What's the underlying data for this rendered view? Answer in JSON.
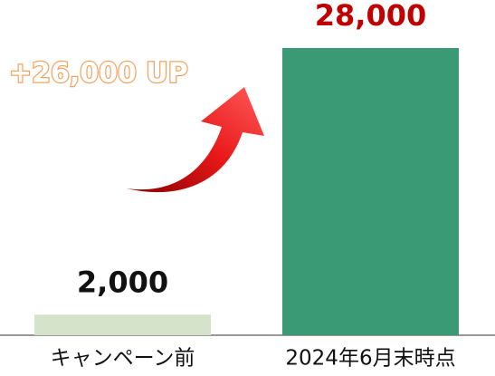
{
  "chart_data": {
    "type": "bar",
    "categories": [
      "キャンペーン前",
      "2024年6月末時点"
    ],
    "values": [
      2000,
      28000
    ],
    "value_labels": [
      "2,000",
      "28,000"
    ],
    "colors": [
      "#d5e3cb",
      "#3a9a76"
    ],
    "value_label_colors": [
      "#111111",
      "#c00000"
    ],
    "annotation": "+26,000 UP"
  }
}
